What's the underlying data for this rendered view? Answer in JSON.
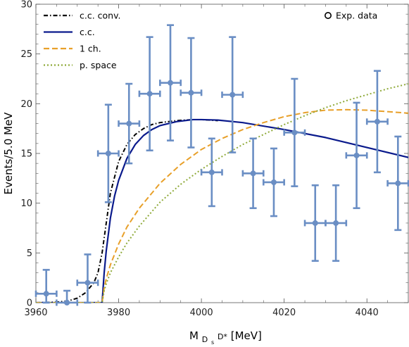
{
  "chart_data": {
    "type": "scatter",
    "xlabel": "M_{D_s D*}[MeV]",
    "xlabel_main": "M",
    "xlabel_sub": "D",
    "xlabel_subsub": "s",
    "xlabel_rest": " D*",
    "xlabel_unit": "[MeV]",
    "ylabel": "Events/5.0 MeV",
    "xlim": [
      3960,
      4050
    ],
    "ylim": [
      0,
      30
    ],
    "x_ticks": [
      3960,
      3980,
      4000,
      4020,
      4040
    ],
    "y_ticks": [
      0,
      5,
      10,
      15,
      20,
      25,
      30
    ],
    "grid": false,
    "legend_position": "top",
    "series": [
      {
        "name": "Exp. data",
        "kind": "points_with_errors",
        "color": "#6a8ec4",
        "points": [
          {
            "x": 3962.5,
            "y": 0.9,
            "yerr": 2.4,
            "xerr": 2.5
          },
          {
            "x": 3967.5,
            "y": 0.0,
            "yerr": 1.2,
            "xerr": 2.5
          },
          {
            "x": 3972.5,
            "y": 2.0,
            "yerr": 2.85,
            "xerr": 2.5
          },
          {
            "x": 3977.5,
            "y": 15.0,
            "yerr": 4.9,
            "xerr": 2.5
          },
          {
            "x": 3982.5,
            "y": 18.0,
            "yerr": 4.0,
            "xerr": 2.5
          },
          {
            "x": 3987.5,
            "y": 21.0,
            "yerr": 5.7,
            "xerr": 2.5
          },
          {
            "x": 3992.5,
            "y": 22.1,
            "yerr": 5.8,
            "xerr": 2.5
          },
          {
            "x": 3997.5,
            "y": 21.1,
            "yerr": 5.5,
            "xerr": 2.5
          },
          {
            "x": 4002.5,
            "y": 13.1,
            "yerr": 3.4,
            "xerr": 2.5
          },
          {
            "x": 4007.5,
            "y": 20.9,
            "yerr": 5.8,
            "xerr": 2.5
          },
          {
            "x": 4012.5,
            "y": 13.0,
            "yerr": 3.5,
            "xerr": 2.5
          },
          {
            "x": 4017.5,
            "y": 12.1,
            "yerr": 3.4,
            "xerr": 2.5
          },
          {
            "x": 4022.5,
            "y": 17.1,
            "yerr": 5.4,
            "xerr": 2.5
          },
          {
            "x": 4027.5,
            "y": 8.0,
            "yerr": 3.8,
            "xerr": 2.5
          },
          {
            "x": 4032.5,
            "y": 8.0,
            "yerr": 3.8,
            "xerr": 2.5
          },
          {
            "x": 4037.5,
            "y": 14.8,
            "yerr": 5.3,
            "xerr": 2.5
          },
          {
            "x": 4042.5,
            "y": 18.2,
            "yerr": 5.1,
            "xerr": 2.5
          },
          {
            "x": 4047.5,
            "y": 12.0,
            "yerr": 4.7,
            "xerr": 2.5
          }
        ]
      },
      {
        "name": "c.c. conv.",
        "kind": "line",
        "color": "#000000",
        "dash": "dashdot",
        "x": [
          3960,
          3965,
          3968,
          3970,
          3972,
          3974,
          3975,
          3976,
          3977,
          3978,
          3980,
          3982,
          3984,
          3986,
          3988,
          3990,
          3994,
          3998,
          4000,
          4004
        ],
        "y": [
          0,
          0.05,
          0.2,
          0.45,
          1.0,
          2.0,
          3.0,
          5.0,
          8.0,
          11.0,
          14.2,
          15.9,
          16.9,
          17.5,
          17.9,
          18.1,
          18.3,
          18.4,
          18.4,
          18.3
        ]
      },
      {
        "name": "c.c.",
        "kind": "line",
        "color": "#0a1a8c",
        "dash": "solid",
        "x": [
          3960,
          3976,
          3976.5,
          3977,
          3978,
          3979,
          3980,
          3982,
          3984,
          3986,
          3988,
          3990,
          3994,
          3998,
          4000,
          4004,
          4010,
          4020,
          4030,
          4040,
          4050
        ],
        "y": [
          0,
          0,
          3.0,
          5.2,
          8.5,
          10.7,
          12.3,
          14.5,
          15.9,
          16.8,
          17.4,
          17.8,
          18.2,
          18.4,
          18.4,
          18.35,
          18.1,
          17.4,
          16.6,
          15.6,
          14.6
        ]
      },
      {
        "name": "1 ch.",
        "kind": "line",
        "color": "#e8a02a",
        "dash": "dashed",
        "x": [
          3960,
          3976,
          3976.5,
          3977,
          3978,
          3980,
          3982,
          3985,
          3990,
          3995,
          4000,
          4005,
          4010,
          4015,
          4020,
          4025,
          4030,
          4035,
          4040,
          4045,
          4050
        ],
        "y": [
          0,
          0,
          1.5,
          2.4,
          3.8,
          5.9,
          7.6,
          9.5,
          12.0,
          13.9,
          15.4,
          16.5,
          17.4,
          18.1,
          18.7,
          19.1,
          19.35,
          19.4,
          19.35,
          19.2,
          19.05
        ]
      },
      {
        "name": "p. space",
        "kind": "line",
        "color": "#8faa3a",
        "dash": "dotted",
        "x": [
          3960,
          3976,
          3976.5,
          3977,
          3978,
          3980,
          3982,
          3985,
          3990,
          3995,
          4000,
          4005,
          4010,
          4015,
          4020,
          4025,
          4030,
          4035,
          4040,
          4045,
          4050
        ],
        "y": [
          0,
          0,
          1.2,
          1.9,
          3.0,
          4.6,
          6.0,
          7.7,
          10.1,
          11.9,
          13.4,
          14.7,
          15.9,
          16.9,
          17.9,
          18.8,
          19.6,
          20.3,
          20.9,
          21.5,
          22.0
        ]
      }
    ]
  }
}
